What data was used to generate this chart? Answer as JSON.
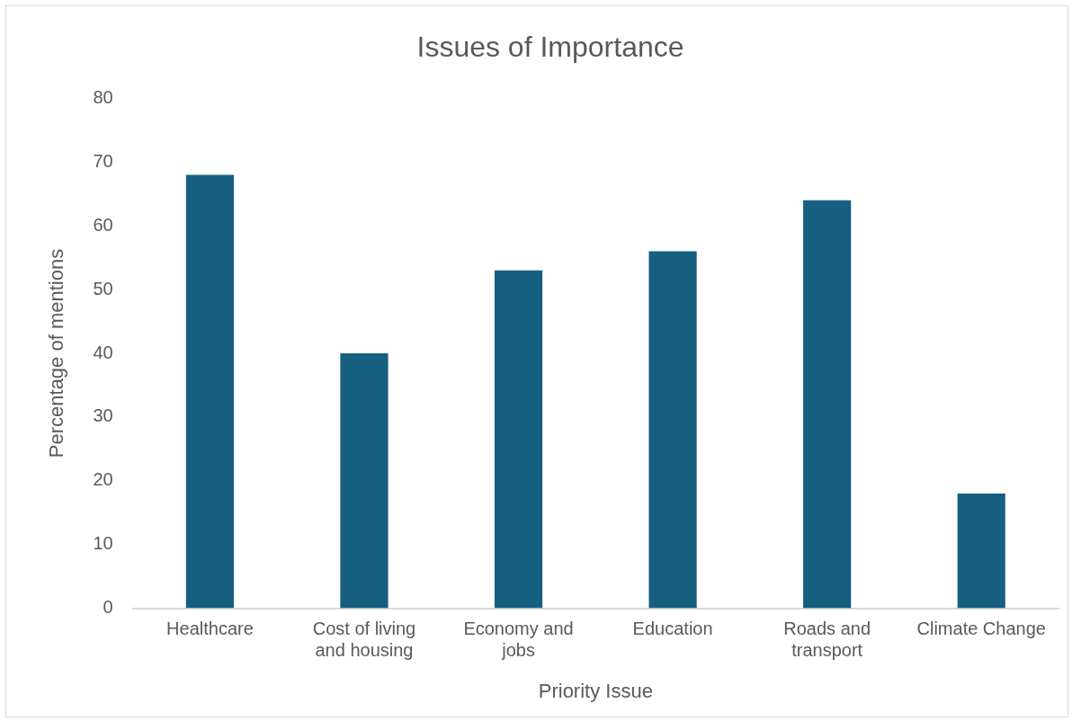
{
  "chart_data": {
    "type": "bar",
    "title": "Issues of Importance",
    "xlabel": "Priority Issue",
    "ylabel": "Percentage of mentions",
    "categories": [
      "Healthcare",
      "Cost of living and housing",
      "Economy and jobs",
      "Education",
      "Roads and transport",
      "Climate Change"
    ],
    "values": [
      68,
      40,
      53,
      56,
      64,
      18
    ],
    "color": "#165f80",
    "ylim": [
      0,
      80
    ],
    "yticks": [
      0,
      10,
      20,
      30,
      40,
      50,
      60,
      70,
      80
    ],
    "grid": false,
    "legend": false
  }
}
